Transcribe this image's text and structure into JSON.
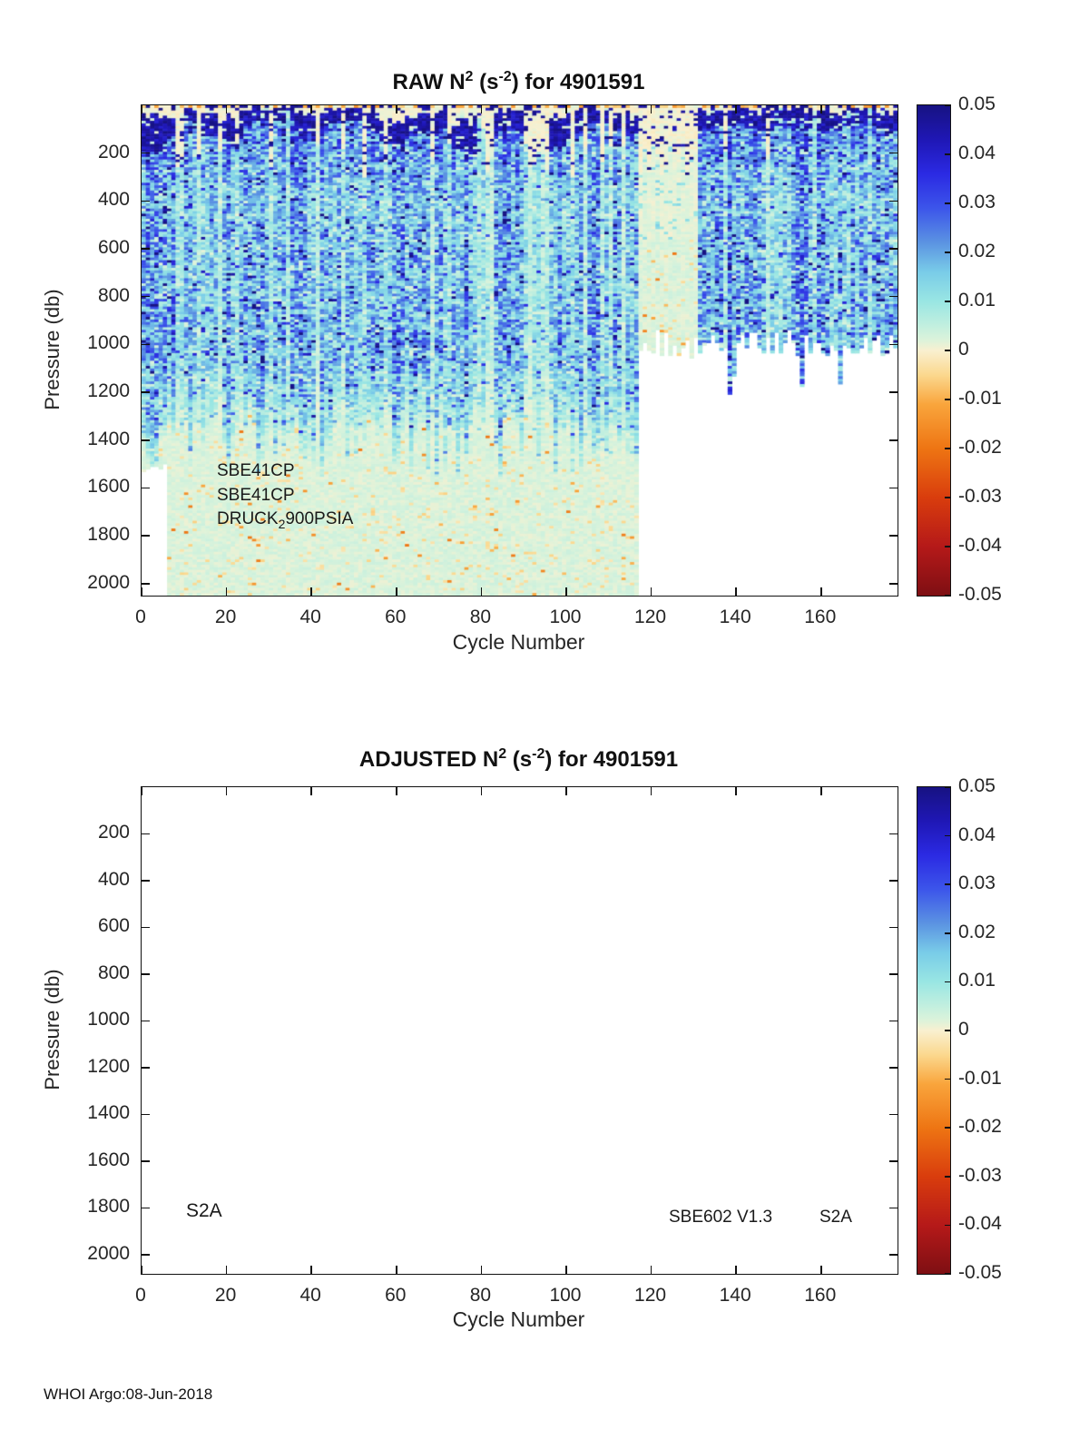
{
  "page": {
    "footer": "WHOI Argo:08-Jun-2018"
  },
  "chart_data": [
    {
      "type": "heatmap",
      "title": "RAW N^2 (s^-2) for 4901591",
      "title_parts": {
        "base1": "RAW N",
        "sup1": "2",
        "base2": " (s",
        "sup2": "-2",
        "base3": ") for 4901591"
      },
      "xlabel": "Cycle Number",
      "ylabel": "Pressure (db)",
      "x_range": [
        0,
        178
      ],
      "y_range": [
        0,
        2050
      ],
      "x_ticks": [
        0,
        20,
        40,
        60,
        80,
        100,
        120,
        140,
        160
      ],
      "y_ticks": [
        200,
        400,
        600,
        800,
        1000,
        1200,
        1400,
        1600,
        1800,
        2000
      ],
      "colorbar_ticks": [
        "0.05",
        "0.04",
        "0.03",
        "0.02",
        "0.01",
        "0",
        "-0.01",
        "-0.02",
        "-0.03",
        "-0.04",
        "-0.05"
      ],
      "colorbar_range": [
        -0.05,
        0.05
      ],
      "grid": false,
      "annotations": {
        "line1": "SBE41CP",
        "line2": "SBE41CP",
        "line3_base": "DRUCK",
        "line3_sub": "2",
        "line3_rest": "900PSIA"
      },
      "summary": {
        "description": "Noisy N^2 section vs cycle and pressure. Surface strip of tan/cream/navy; dark navy stratification band 20-190 db; blue speckle (N^2 ~0.01-0.04) from below mixed layer to ~1000 db; fades to pale mint (~0.002) below ~1100-1350 db.",
        "regions": [
          {
            "cycles": [
              0,
              5
            ],
            "pressure_extent": [
              0,
              1520
            ],
            "character": "full profile, white below 1520 db"
          },
          {
            "cycles": [
              5,
              117
            ],
            "pressure_extent": [
              0,
              2050
            ],
            "character": "full-depth profiles; blue speckle above 1000 db, pale mint below ~1300 db"
          },
          {
            "cycles": [
              117,
              131
            ],
            "pressure_extent": [
              0,
              1000
            ],
            "character": "pale washed-out columns, jagged bottom near 950-1060 db, white below"
          },
          {
            "cycles": [
              131,
              178
            ],
            "pressure_extent": [
              0,
              1010
            ],
            "character": "blue speckle to ~1000 db, jagged bottom edge, white below"
          }
        ],
        "typical_values_by_depth": [
          {
            "pressure_db": 5,
            "n2": 0.0
          },
          {
            "pressure_db": 100,
            "n2": 0.045
          },
          {
            "pressure_db": 300,
            "n2": 0.028
          },
          {
            "pressure_db": 500,
            "n2": 0.021
          },
          {
            "pressure_db": 800,
            "n2": 0.021
          },
          {
            "pressure_db": 1100,
            "n2": 0.012
          },
          {
            "pressure_db": 1500,
            "n2": 0.002
          },
          {
            "pressure_db": 2000,
            "n2": 0.002
          }
        ]
      },
      "colormap": [
        [
          0.05,
          "#171282"
        ],
        [
          0.043,
          "#1f17b5"
        ],
        [
          0.036,
          "#2b2ae3"
        ],
        [
          0.029,
          "#3c55ea"
        ],
        [
          0.022,
          "#5b93e2"
        ],
        [
          0.016,
          "#79cce8"
        ],
        [
          0.01,
          "#99e6e3"
        ],
        [
          0.005,
          "#c2efdf"
        ],
        [
          0.002,
          "#ddf3da"
        ],
        [
          0.0,
          "#f9f0d0"
        ],
        [
          -0.005,
          "#fbd88e"
        ],
        [
          -0.011,
          "#f9a53c"
        ],
        [
          -0.02,
          "#ee7513"
        ],
        [
          -0.03,
          "#d93d0d"
        ],
        [
          -0.04,
          "#b51919"
        ],
        [
          -0.05,
          "#7e0f13"
        ]
      ],
      "render": {
        "seed": 987654321,
        "cols": 178,
        "rows": 190,
        "max_pressure": 2050,
        "left_shallow_cycles": 5,
        "left_shallow_pressure": 1500,
        "gap_start": 117,
        "gap_end": 131,
        "right_bottom_pressure": 1000,
        "pale_cycles": [
          8,
          9,
          13,
          18,
          22,
          30,
          34,
          41,
          47,
          52,
          57,
          68,
          72,
          79,
          80,
          81,
          82,
          90,
          91,
          92,
          93,
          94,
          95,
          101,
          104,
          108,
          110,
          113,
          137,
          147,
          158,
          166,
          171
        ]
      }
    },
    {
      "type": "heatmap",
      "title": "ADJUSTED N^2 (s^-2) for 4901591",
      "title_parts": {
        "base1": "ADJUSTED N",
        "sup1": "2",
        "base2": " (s",
        "sup2": "-2",
        "base3": ") for 4901591"
      },
      "xlabel": "Cycle Number",
      "ylabel": "Pressure (db)",
      "x_range": [
        0,
        178
      ],
      "y_range": [
        0,
        2082
      ],
      "x_ticks": [
        0,
        20,
        40,
        60,
        80,
        100,
        120,
        140,
        160
      ],
      "y_ticks": [
        200,
        400,
        600,
        800,
        1000,
        1200,
        1400,
        1600,
        1800,
        2000
      ],
      "colorbar_ticks": [
        "0.05",
        "0.04",
        "0.03",
        "0.02",
        "0.01",
        "0",
        "-0.01",
        "-0.02",
        "-0.03",
        "-0.04",
        "-0.05"
      ],
      "colorbar_range": [
        -0.05,
        0.05
      ],
      "grid": false,
      "values": [],
      "note_no_data": "panel is empty (no adjusted data plotted)",
      "annotations": {
        "left": "S2A",
        "right1": "SBE602 V1.3",
        "right2": "S2A"
      }
    }
  ]
}
